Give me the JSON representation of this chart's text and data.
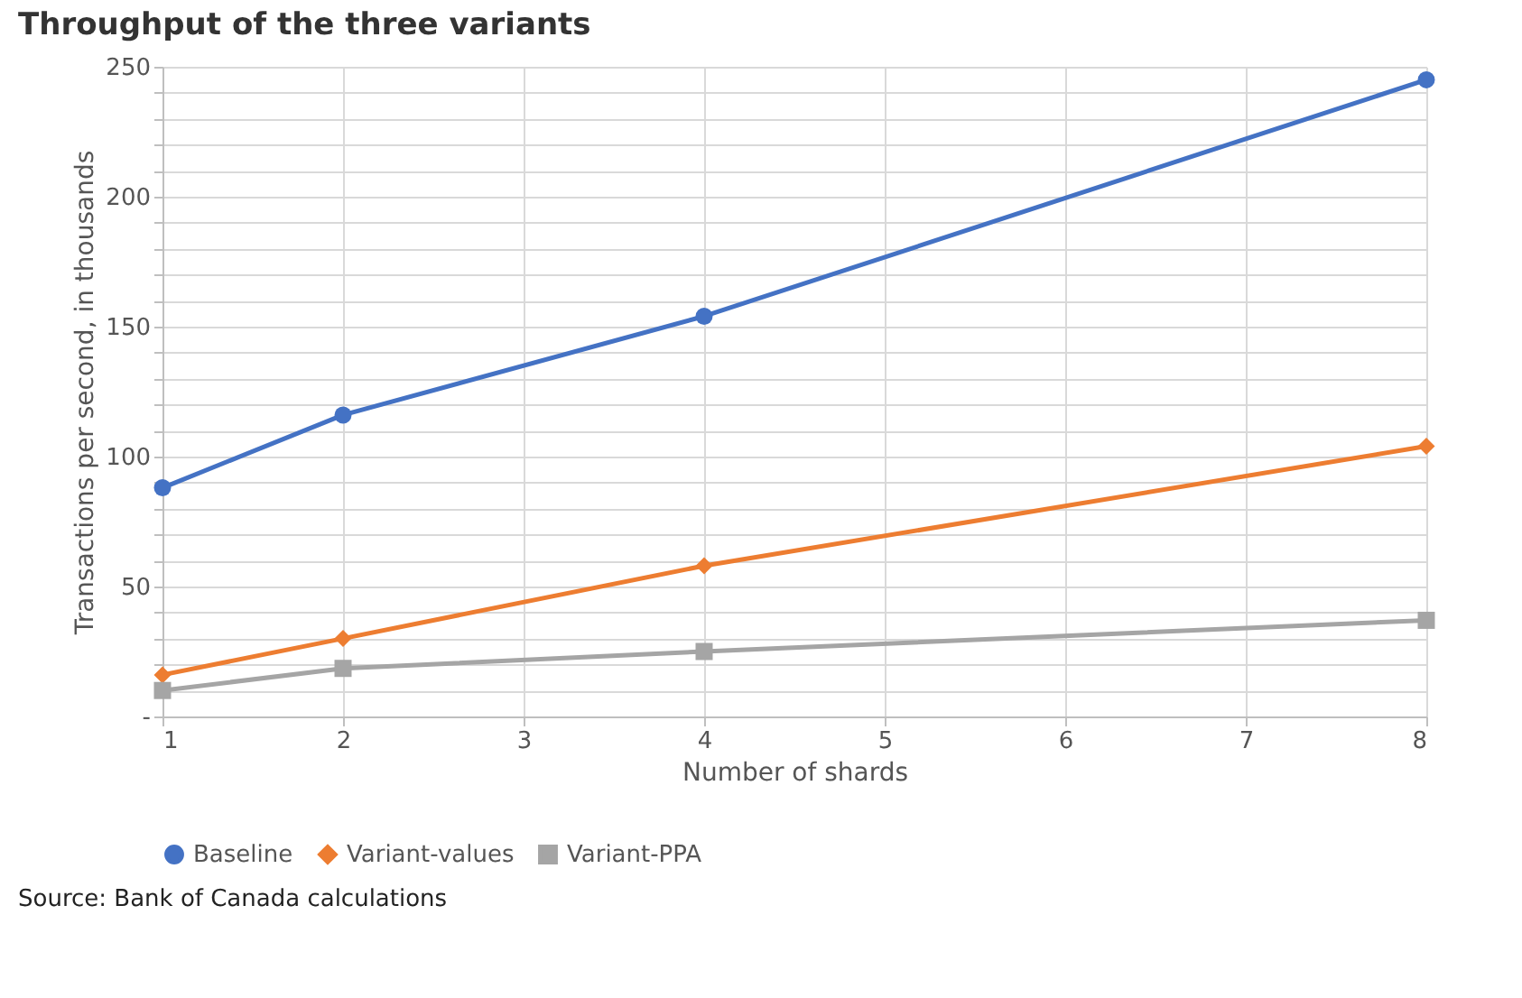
{
  "chart_data": {
    "type": "line",
    "title": "Throughput of the three variants",
    "xlabel": "Number of shards",
    "ylabel": "Transactions per second, in thousands",
    "x": [
      1,
      2,
      4,
      8
    ],
    "series": [
      {
        "name": "Baseline",
        "color": "#4472c4",
        "marker": "circle",
        "values": [
          88,
          116,
          154,
          245
        ]
      },
      {
        "name": "Variant-values",
        "color": "#ed7d31",
        "marker": "diamond",
        "values": [
          16,
          30,
          58,
          104
        ]
      },
      {
        "name": "Variant-PPA",
        "color": "#a5a5a5",
        "marker": "square",
        "values": [
          10,
          18.5,
          25,
          37
        ]
      }
    ],
    "xlim": [
      1,
      8
    ],
    "xticks": [
      1,
      2,
      3,
      4,
      5,
      6,
      7,
      8
    ],
    "ylim": [
      0,
      250
    ],
    "yticks": [
      {
        "value": 0,
        "label": "-"
      },
      {
        "value": 10,
        "label": null
      },
      {
        "value": 20,
        "label": null
      },
      {
        "value": 30,
        "label": null
      },
      {
        "value": 40,
        "label": null
      },
      50,
      {
        "value": 60,
        "label": null
      },
      {
        "value": 70,
        "label": null
      },
      {
        "value": 80,
        "label": null
      },
      {
        "value": 90,
        "label": null
      },
      100,
      {
        "value": 110,
        "label": null
      },
      {
        "value": 120,
        "label": null
      },
      {
        "value": 130,
        "label": null
      },
      {
        "value": 140,
        "label": null
      },
      150,
      {
        "value": 160,
        "label": null
      },
      {
        "value": 170,
        "label": null
      },
      {
        "value": 180,
        "label": null
      },
      {
        "value": 190,
        "label": null
      },
      200,
      {
        "value": 210,
        "label": null
      },
      {
        "value": 220,
        "label": null
      },
      {
        "value": 230,
        "label": null
      },
      {
        "value": 240,
        "label": null
      },
      250
    ],
    "grid": true,
    "legend": "bottom",
    "line_style": "solid",
    "annotations": [
      "Source: Bank of Canada calculations"
    ]
  }
}
